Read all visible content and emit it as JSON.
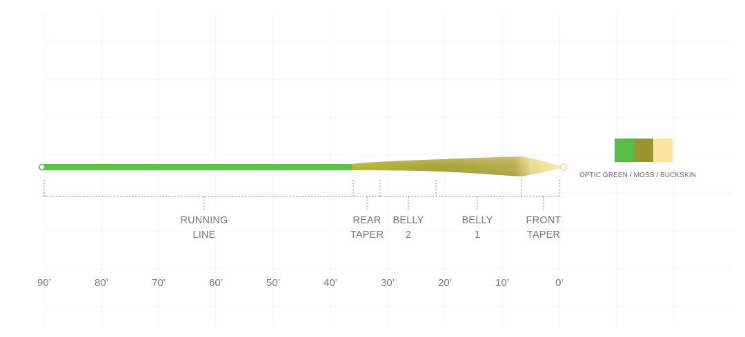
{
  "segments": [
    {
      "id": "running-line",
      "line1": "RUNNING",
      "line2": "LINE"
    },
    {
      "id": "rear-taper",
      "line1": "REAR",
      "line2": "TAPER"
    },
    {
      "id": "belly-2",
      "line1": "BELLY",
      "line2": "2"
    },
    {
      "id": "belly-1",
      "line1": "BELLY",
      "line2": "1"
    },
    {
      "id": "front-taper",
      "line1": "FRONT",
      "line2": "TAPER"
    }
  ],
  "scale": [
    "90’",
    "80’",
    "70’",
    "60’",
    "50’",
    "40’",
    "30’",
    "20’",
    "10’",
    "0’"
  ],
  "colors": {
    "caption": "OPTIC GREEN / MOSS / BUCKSKIN",
    "swatches": [
      {
        "name": "optic-green",
        "hex": "#58bb47"
      },
      {
        "name": "moss",
        "hex": "#9a9433"
      },
      {
        "name": "buckskin",
        "hex": "#fbe3a1"
      }
    ]
  }
}
